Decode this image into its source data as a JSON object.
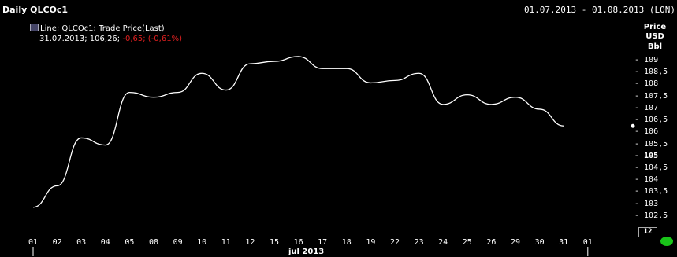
{
  "header": {
    "title": "Daily QLCOc1",
    "range": "01.07.2013 - 01.08.2013 (LON)"
  },
  "legend": {
    "line1": "Line; QLCOc1; Trade Price(Last)",
    "last_values": "31.07.2013; 106,26;",
    "change": "-0,65;",
    "change_pct": "(-0,61%)"
  },
  "y_unit": [
    "Price",
    "USD",
    "Bbl"
  ],
  "last_box": "12",
  "chart_data": {
    "type": "line",
    "title": "Daily QLCOc1",
    "x_labels": [
      "01",
      "02",
      "03",
      "04",
      "05",
      "08",
      "09",
      "10",
      "11",
      "12",
      "15",
      "16",
      "17",
      "18",
      "19",
      "22",
      "23",
      "24",
      "25",
      "26",
      "29",
      "30",
      "31",
      "01"
    ],
    "month_label": "jul 2013",
    "y_ticks": [
      "109",
      "108,5",
      "108",
      "107,5",
      "107",
      "106,5",
      "106",
      "105,5",
      "105",
      "104,5",
      "104",
      "103,5",
      "103",
      "102,5"
    ],
    "ylim": [
      102.3,
      109.1
    ],
    "series": [
      {
        "x": [
          "01",
          "02",
          "03",
          "04",
          "05",
          "08",
          "09",
          "10",
          "11",
          "12",
          "15",
          "16",
          "17",
          "18",
          "19",
          "22",
          "23",
          "24",
          "25",
          "26",
          "29",
          "30",
          "31"
        ],
        "values": [
          102.9,
          103.8,
          105.8,
          105.5,
          107.7,
          107.5,
          107.7,
          108.5,
          107.8,
          108.9,
          109.0,
          109.2,
          108.7,
          108.7,
          108.1,
          108.2,
          108.5,
          107.2,
          107.6,
          107.2,
          107.5,
          107.0,
          106.3
        ]
      }
    ],
    "grid": false,
    "legend_position": "top-left"
  }
}
